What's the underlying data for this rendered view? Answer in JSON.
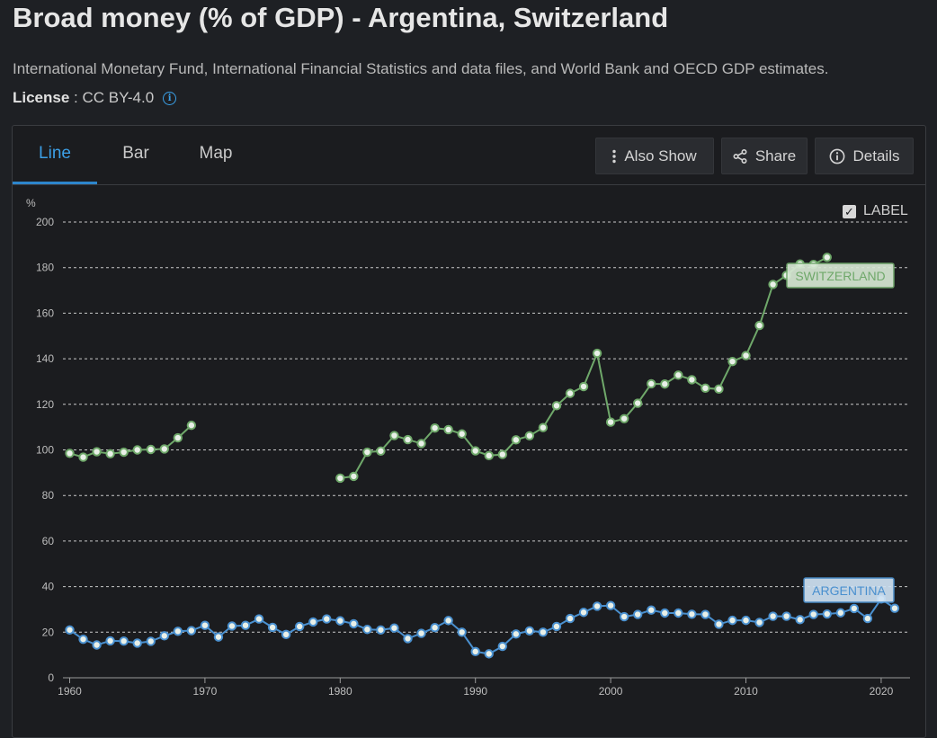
{
  "title": "Broad money (% of GDP) - Argentina, Switzerland",
  "source": "International Monetary Fund, International Financial Statistics and data files, and World Bank and OECD GDP estimates.",
  "license": {
    "label": "License",
    "separator": " : ",
    "value": "CC BY-4.0"
  },
  "tabs": [
    {
      "label": "Line",
      "active": true
    },
    {
      "label": "Bar",
      "active": false
    },
    {
      "label": "Map",
      "active": false
    }
  ],
  "toolbar": {
    "also_show": "Also Show",
    "share": "Share",
    "details": "Details"
  },
  "label_toggle": {
    "text": "LABEL",
    "checked": true,
    "check_glyph": "✓"
  },
  "colors": {
    "switzerland": "#6fa86a",
    "argentina": "#4a90cf",
    "grid": "#e8e8e8",
    "axis_text": "#bdbdbd"
  },
  "chart_data": {
    "type": "line",
    "ylabel": "%",
    "ylim": [
      0,
      200
    ],
    "yticks": [
      0,
      20,
      40,
      60,
      80,
      100,
      120,
      140,
      160,
      180,
      200
    ],
    "xlim": [
      1960,
      2022
    ],
    "xticks": [
      1960,
      1970,
      1980,
      1990,
      2000,
      2010,
      2020
    ],
    "grid": true,
    "series": [
      {
        "name": "SWITZERLAND",
        "points": [
          [
            1960,
            98.5
          ],
          [
            1961,
            96.8
          ],
          [
            1962,
            99.2
          ],
          [
            1963,
            98.3
          ],
          [
            1964,
            99.0
          ],
          [
            1965,
            100.0
          ],
          [
            1966,
            100.2
          ],
          [
            1967,
            100.4
          ],
          [
            1968,
            105.3
          ],
          [
            1969,
            110.8
          ],
          [
            1980,
            87.6
          ],
          [
            1981,
            88.4
          ],
          [
            1982,
            99.0
          ],
          [
            1983,
            99.5
          ],
          [
            1984,
            106.3
          ],
          [
            1985,
            104.5
          ],
          [
            1986,
            102.8
          ],
          [
            1987,
            109.6
          ],
          [
            1988,
            108.9
          ],
          [
            1989,
            107.0
          ],
          [
            1990,
            99.6
          ],
          [
            1991,
            97.5
          ],
          [
            1992,
            98.0
          ],
          [
            1993,
            104.4
          ],
          [
            1994,
            106.2
          ],
          [
            1995,
            109.8
          ],
          [
            1996,
            119.4
          ],
          [
            1997,
            124.8
          ],
          [
            1998,
            127.8
          ],
          [
            1999,
            142.4
          ],
          [
            2000,
            112.2
          ],
          [
            2001,
            113.7
          ],
          [
            2002,
            120.5
          ],
          [
            2003,
            129.0
          ],
          [
            2004,
            128.9
          ],
          [
            2005,
            132.8
          ],
          [
            2006,
            130.8
          ],
          [
            2007,
            127.1
          ],
          [
            2008,
            126.7
          ],
          [
            2009,
            138.8
          ],
          [
            2010,
            141.4
          ],
          [
            2011,
            154.6
          ],
          [
            2012,
            172.6
          ],
          [
            2013,
            176.6
          ],
          [
            2014,
            181.6
          ],
          [
            2015,
            181.4
          ],
          [
            2016,
            184.5
          ]
        ]
      },
      {
        "name": "ARGENTINA",
        "points": [
          [
            1960,
            21.0
          ],
          [
            1961,
            16.9
          ],
          [
            1962,
            14.4
          ],
          [
            1963,
            16.2
          ],
          [
            1964,
            16.1
          ],
          [
            1965,
            15.2
          ],
          [
            1966,
            16.0
          ],
          [
            1967,
            18.4
          ],
          [
            1968,
            20.4
          ],
          [
            1969,
            20.7
          ],
          [
            1970,
            23.0
          ],
          [
            1971,
            17.9
          ],
          [
            1972,
            22.7
          ],
          [
            1973,
            23.0
          ],
          [
            1974,
            25.8
          ],
          [
            1975,
            22.1
          ],
          [
            1976,
            19.0
          ],
          [
            1977,
            22.5
          ],
          [
            1978,
            24.5
          ],
          [
            1979,
            25.8
          ],
          [
            1980,
            25.0
          ],
          [
            1981,
            23.7
          ],
          [
            1982,
            21.2
          ],
          [
            1983,
            21.0
          ],
          [
            1984,
            21.8
          ],
          [
            1985,
            17.2
          ],
          [
            1986,
            19.5
          ],
          [
            1987,
            22.0
          ],
          [
            1988,
            25.1
          ],
          [
            1989,
            20.0
          ],
          [
            1990,
            11.5
          ],
          [
            1991,
            10.5
          ],
          [
            1992,
            13.8
          ],
          [
            1993,
            19.2
          ],
          [
            1994,
            20.6
          ],
          [
            1995,
            20.0
          ],
          [
            1996,
            22.5
          ],
          [
            1997,
            26.0
          ],
          [
            1998,
            28.7
          ],
          [
            1999,
            31.4
          ],
          [
            2000,
            31.7
          ],
          [
            2001,
            26.8
          ],
          [
            2002,
            27.8
          ],
          [
            2003,
            29.7
          ],
          [
            2004,
            28.4
          ],
          [
            2005,
            28.4
          ],
          [
            2006,
            27.9
          ],
          [
            2007,
            27.8
          ],
          [
            2008,
            23.5
          ],
          [
            2009,
            25.2
          ],
          [
            2010,
            25.2
          ],
          [
            2011,
            24.3
          ],
          [
            2012,
            27.0
          ],
          [
            2013,
            27.0
          ],
          [
            2014,
            25.5
          ],
          [
            2015,
            27.8
          ],
          [
            2016,
            28.0
          ],
          [
            2017,
            28.5
          ],
          [
            2018,
            30.4
          ],
          [
            2019,
            26.0
          ],
          [
            2020,
            34.6
          ],
          [
            2021,
            30.5
          ]
        ]
      }
    ]
  }
}
